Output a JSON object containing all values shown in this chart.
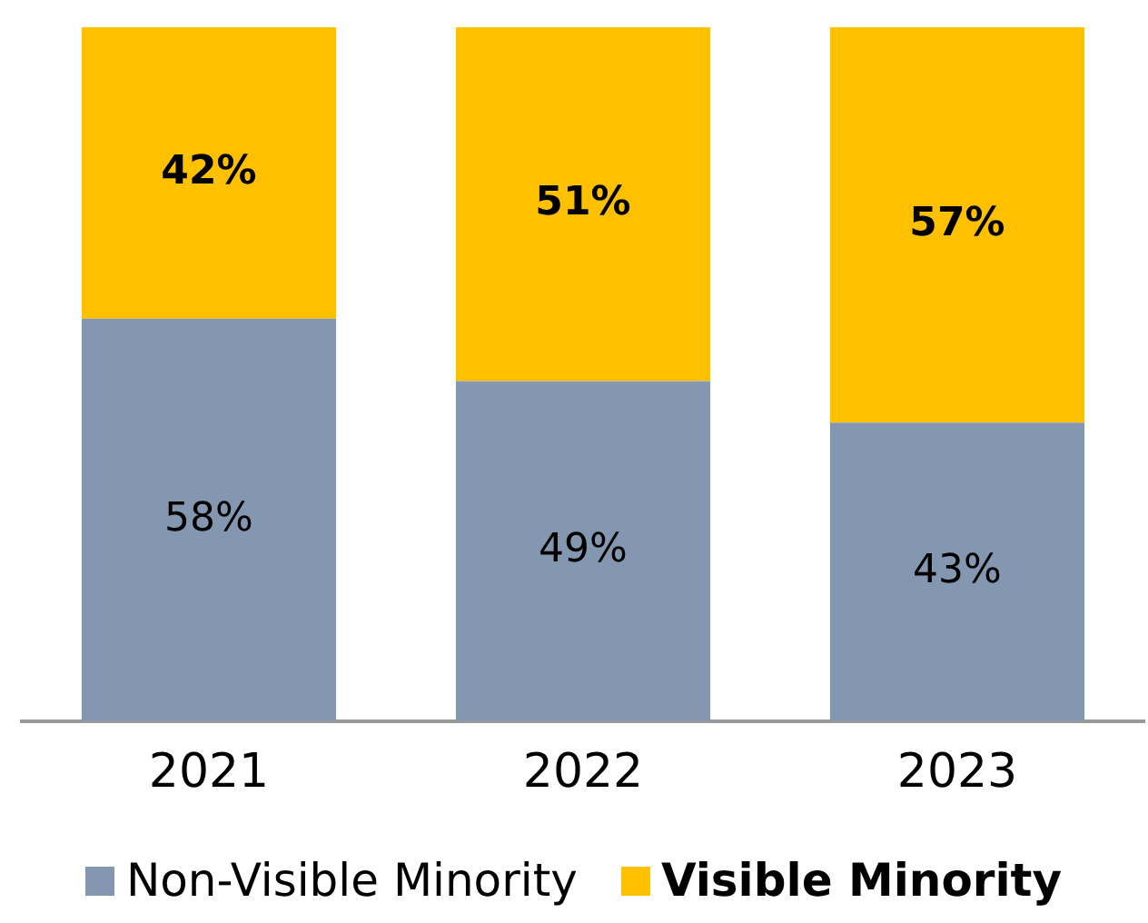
{
  "chart_data": {
    "type": "bar",
    "stacked": true,
    "categories": [
      "2021",
      "2022",
      "2023"
    ],
    "series": [
      {
        "name": "Non-Visible Minority",
        "color": "#8497b0",
        "values": [
          58,
          49,
          43
        ],
        "value_labels": [
          "58%",
          "49%",
          "43%"
        ]
      },
      {
        "name": "Visible Minority",
        "color": "#ffc000",
        "values": [
          42,
          51,
          57
        ],
        "value_labels": [
          "42%",
          "51%",
          "57%"
        ]
      }
    ],
    "grid": false,
    "legend": "bottom",
    "tick_labels": "x"
  }
}
